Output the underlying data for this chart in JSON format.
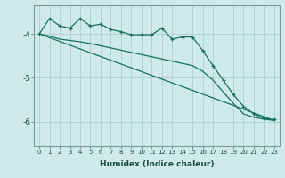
{
  "xlabel": "Humidex (Indice chaleur)",
  "background_color": "#ceeaea",
  "grid_color": "#aecece",
  "line_color": "#1a7060",
  "xlim": [
    -0.5,
    23.5
  ],
  "ylim": [
    -6.55,
    -3.35
  ],
  "yticks": [
    -6,
    -5,
    -4
  ],
  "xticks": [
    0,
    1,
    2,
    3,
    4,
    5,
    6,
    7,
    8,
    9,
    10,
    11,
    12,
    13,
    14,
    15,
    16,
    17,
    18,
    19,
    20,
    21,
    22,
    23
  ],
  "line1_x": [
    0,
    1,
    2,
    3,
    4,
    5,
    6,
    7,
    8,
    9,
    10,
    11,
    12,
    13,
    14,
    15,
    16,
    17,
    18,
    19,
    20,
    21,
    22,
    23
  ],
  "line1_y": [
    -4.0,
    -3.65,
    -3.82,
    -3.87,
    -3.65,
    -3.82,
    -3.78,
    -3.9,
    -3.95,
    -4.02,
    -4.02,
    -4.02,
    -3.87,
    -4.12,
    -4.07,
    -4.07,
    -4.38,
    -4.72,
    -5.05,
    -5.38,
    -5.65,
    -5.82,
    -5.92,
    -5.95
  ],
  "line2_x": [
    0,
    1,
    2,
    3,
    4,
    5,
    6,
    7,
    8,
    9,
    10,
    11,
    12,
    13,
    14,
    15,
    16,
    17,
    18,
    19,
    20,
    21,
    22,
    23
  ],
  "line2_y": [
    -4.0,
    -4.05,
    -4.12,
    -4.15,
    -4.18,
    -4.22,
    -4.27,
    -4.32,
    -4.37,
    -4.42,
    -4.47,
    -4.52,
    -4.57,
    -4.62,
    -4.67,
    -4.72,
    -4.85,
    -5.05,
    -5.32,
    -5.58,
    -5.82,
    -5.9,
    -5.94,
    -5.97
  ],
  "line3_x": [
    0,
    23
  ],
  "line3_y": [
    -4.0,
    -5.97
  ]
}
